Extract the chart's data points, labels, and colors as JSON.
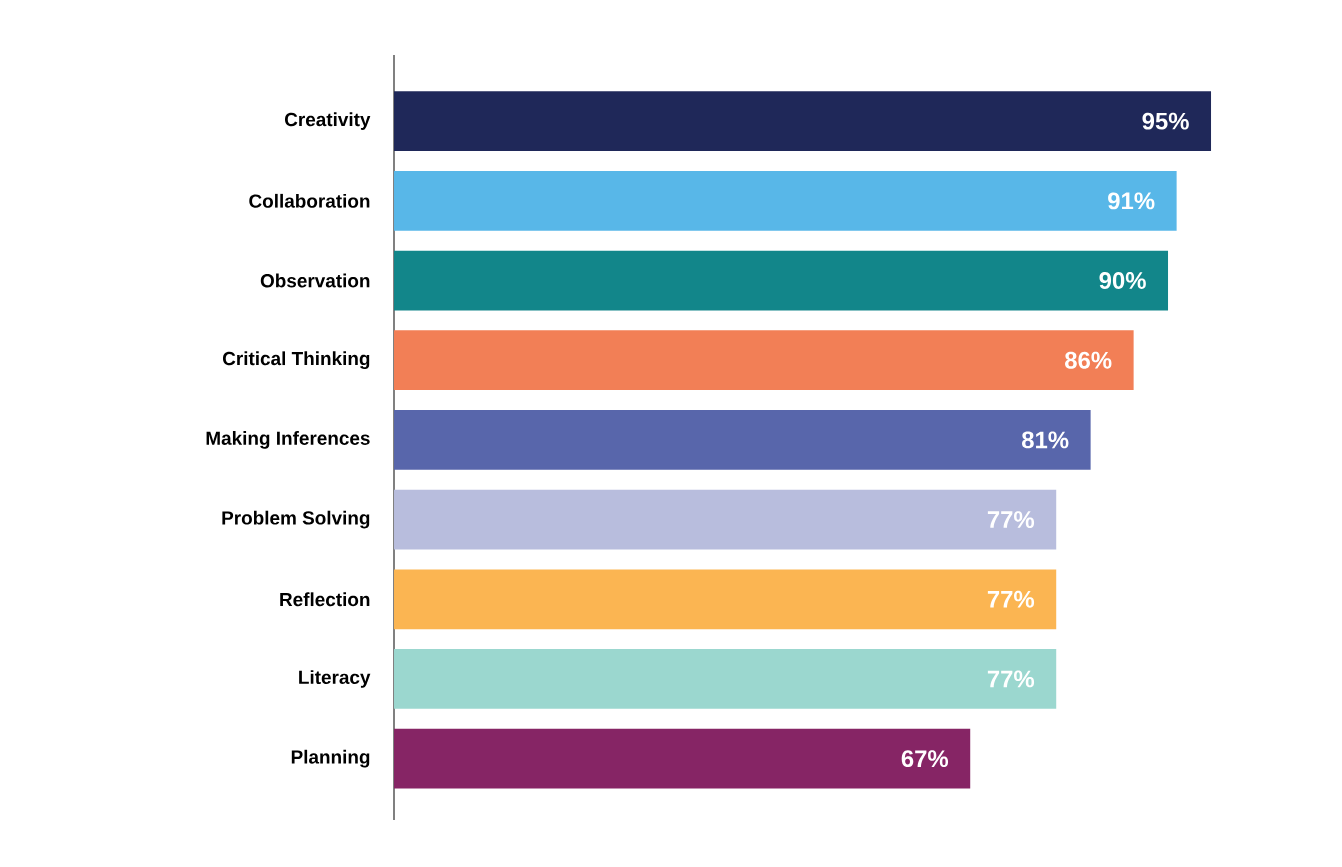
{
  "chart_data": {
    "type": "bar",
    "orientation": "horizontal",
    "categories": [
      "Creativity",
      "Collaboration",
      "Observation",
      "Critical Thinking",
      "Making Inferences",
      "Problem Solving",
      "Reflection",
      "Literacy",
      "Planning"
    ],
    "values": [
      95,
      91,
      90,
      86,
      81,
      77,
      77,
      77,
      67
    ],
    "value_labels": [
      "95%",
      "91%",
      "90%",
      "86%",
      "81%",
      "77%",
      "77%",
      "77%",
      "67%"
    ],
    "colors": [
      "#1f2859",
      "#58b7e8",
      "#12868a",
      "#f27f56",
      "#5866ab",
      "#b8bddd",
      "#fbb552",
      "#9bd7cf",
      "#862565"
    ],
    "tick_labels": "y"
  }
}
